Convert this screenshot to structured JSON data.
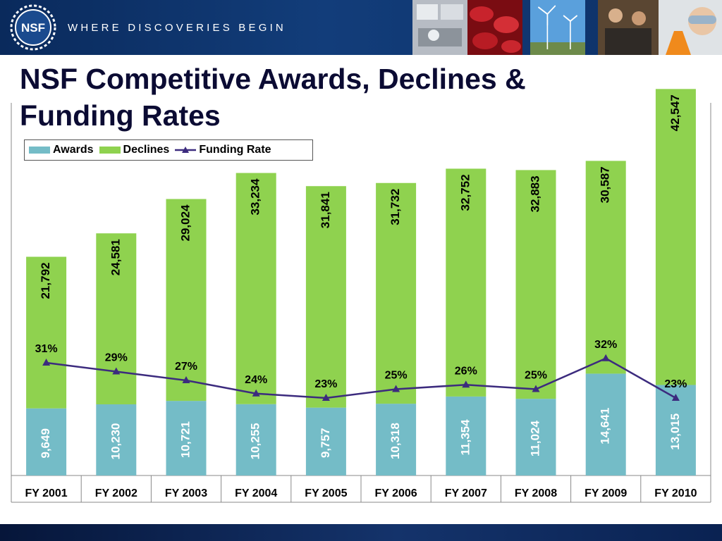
{
  "header": {
    "logo_text": "NSF",
    "tagline": "WHERE DISCOVERIES BEGIN"
  },
  "slide": {
    "title": "NSF Competitive Awards, Declines & Funding Rates"
  },
  "colors": {
    "awards": "#74bcc7",
    "declines": "#8fd24f",
    "funding_rate": "#3c2b7e",
    "title": "#0b0b33"
  },
  "chart_data": {
    "type": "bar",
    "stacked": true,
    "categories": [
      "FY 2001",
      "FY 2002",
      "FY 2003",
      "FY 2004",
      "FY 2005",
      "FY 2006",
      "FY 2007",
      "FY 2008",
      "FY 2009",
      "FY 2010"
    ],
    "series": [
      {
        "name": "Awards",
        "type": "bar",
        "values": [
          9649,
          10230,
          10721,
          10255,
          9757,
          10318,
          11354,
          11024,
          14641,
          13015
        ],
        "labels": [
          "9,649",
          "10,230",
          "10,721",
          "10,255",
          "9,757",
          "10,318",
          "11,354",
          "11,024",
          "14,641",
          "13,015"
        ]
      },
      {
        "name": "Declines",
        "type": "bar",
        "values": [
          21792,
          24581,
          29024,
          33234,
          31841,
          31732,
          32752,
          32883,
          30587,
          42547
        ],
        "labels": [
          "21,792",
          "24,581",
          "29,024",
          "33,234",
          "31,841",
          "31,732",
          "32,752",
          "32,883",
          "30,587",
          "42,547"
        ]
      },
      {
        "name": "Funding Rate",
        "type": "line",
        "values": [
          31,
          29,
          27,
          24,
          23,
          25,
          26,
          25,
          32,
          23
        ],
        "labels": [
          "31%",
          "29%",
          "27%",
          "24%",
          "23%",
          "25%",
          "26%",
          "25%",
          "32%",
          "23%"
        ]
      }
    ],
    "legend": "top-left",
    "grid": false
  }
}
